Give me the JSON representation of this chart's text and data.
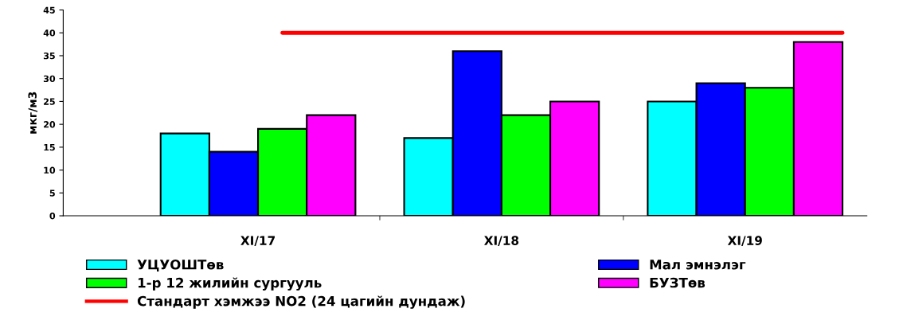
{
  "chart_data": {
    "type": "bar",
    "ylabel": "мкг/м3",
    "categories": [
      "XI/17",
      "XI/18",
      "XI/19"
    ],
    "series": [
      {
        "name": "УЦУОШТөв",
        "color": "#00ffff",
        "values": [
          18,
          17,
          25
        ]
      },
      {
        "name": "Мал эмнэлэг",
        "color": "#0000ff",
        "values": [
          14,
          36,
          29
        ]
      },
      {
        "name": "1-р 12 жилийн сургууль",
        "color": "#00ff00",
        "values": [
          19,
          22,
          28
        ]
      },
      {
        "name": "БУЗТөв",
        "color": "#ff00ff",
        "values": [
          22,
          25,
          38
        ]
      }
    ],
    "ref_lines": [
      {
        "axis": "y",
        "value": 40,
        "label": "Стандарт хэмжээ NO2 (24 цагийн дундаж)",
        "color": "#ff0000",
        "line_style": "solid"
      }
    ],
    "ylim": [
      0,
      45
    ],
    "yticks": [
      0,
      5,
      10,
      15,
      20,
      25,
      30,
      35,
      40,
      45
    ],
    "grid": false,
    "legend": "bottom"
  }
}
